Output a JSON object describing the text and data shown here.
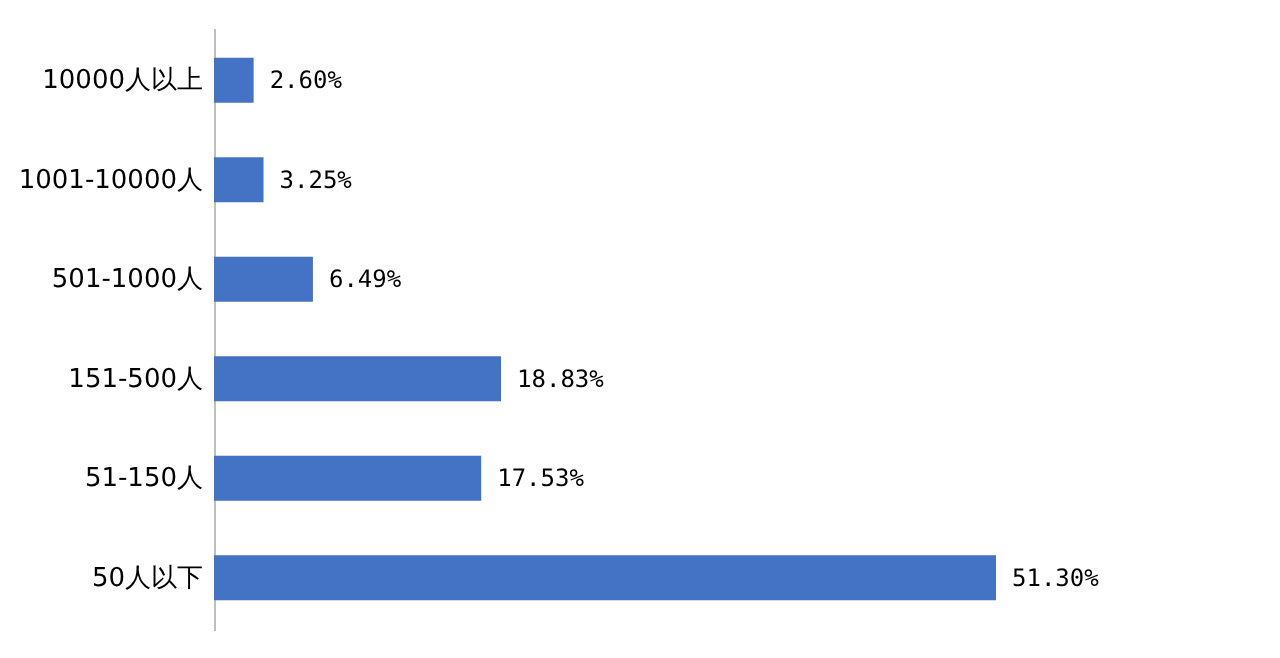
{
  "chart_data": {
    "type": "bar",
    "orientation": "horizontal",
    "categories": [
      "10000人以上",
      "1001-10000人",
      "501-1000人",
      "151-500人",
      "51-150人",
      "50人以下"
    ],
    "values": [
      2.6,
      3.25,
      6.49,
      18.83,
      17.53,
      51.3
    ],
    "value_labels": [
      "2.60%",
      "3.25%",
      "6.49%",
      "18.83%",
      "17.53%",
      "51.30%"
    ],
    "color": "#4472c4",
    "tick_labels": "y"
  }
}
